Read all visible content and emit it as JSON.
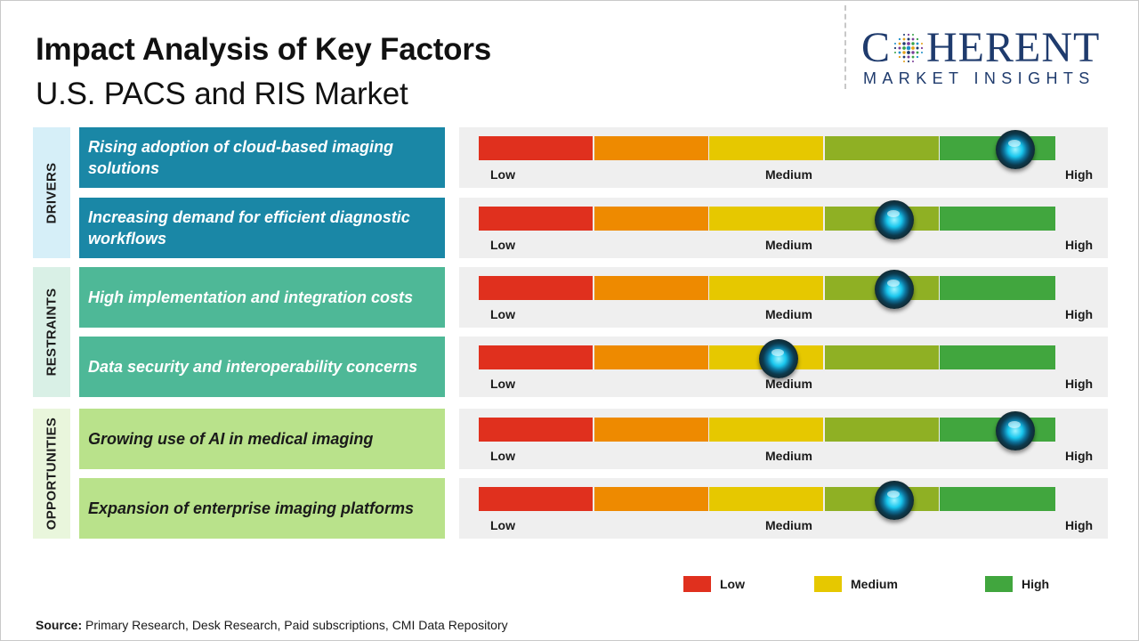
{
  "title": "Impact Analysis of Key Factors",
  "subtitle": "U.S. PACS and RIS Market",
  "logo": {
    "main_left": "C",
    "main_right": "HERENT",
    "sub": "MARKET INSIGHTS"
  },
  "colors": {
    "scale": [
      "#e0301e",
      "#ee8a00",
      "#e6c800",
      "#8fb024",
      "#41a63e"
    ],
    "drivers_factor_bg": "#1a87a6",
    "drivers_category_bg": "#d6eff8",
    "restraints_factor_bg": "#4eb897",
    "restraints_category_bg": "#d9f0e6",
    "opportunities_factor_bg": "#b9e28b",
    "opportunities_category_bg": "#e9f6dc"
  },
  "chart_data": {
    "type": "gauge-bar",
    "scale_labels": [
      "Low",
      "Medium",
      "High"
    ],
    "range": [
      0,
      1
    ],
    "categories": [
      {
        "name": "DRIVERS",
        "factors": [
          {
            "label": "Rising adoption of cloud-based imaging solutions",
            "value": 0.93
          },
          {
            "label": "Increasing demand for efficient diagnostic workflows",
            "value": 0.72
          }
        ]
      },
      {
        "name": "RESTRAINTS",
        "factors": [
          {
            "label": "High implementation and integration costs",
            "value": 0.72
          },
          {
            "label": "Data security and interoperability concerns",
            "value": 0.52
          }
        ]
      },
      {
        "name": "OPPORTUNITIES",
        "factors": [
          {
            "label": "Growing use of AI in medical imaging",
            "value": 0.93
          },
          {
            "label": "Expansion of enterprise imaging platforms",
            "value": 0.72
          }
        ]
      }
    ]
  },
  "legend": [
    {
      "label": "Low",
      "color": "#e0301e"
    },
    {
      "label": "Medium",
      "color": "#e6c800"
    },
    {
      "label": "High",
      "color": "#41a63e"
    }
  ],
  "source": {
    "label": "Source:",
    "text": "Primary Research, Desk Research, Paid subscriptions, CMI Data Repository"
  }
}
